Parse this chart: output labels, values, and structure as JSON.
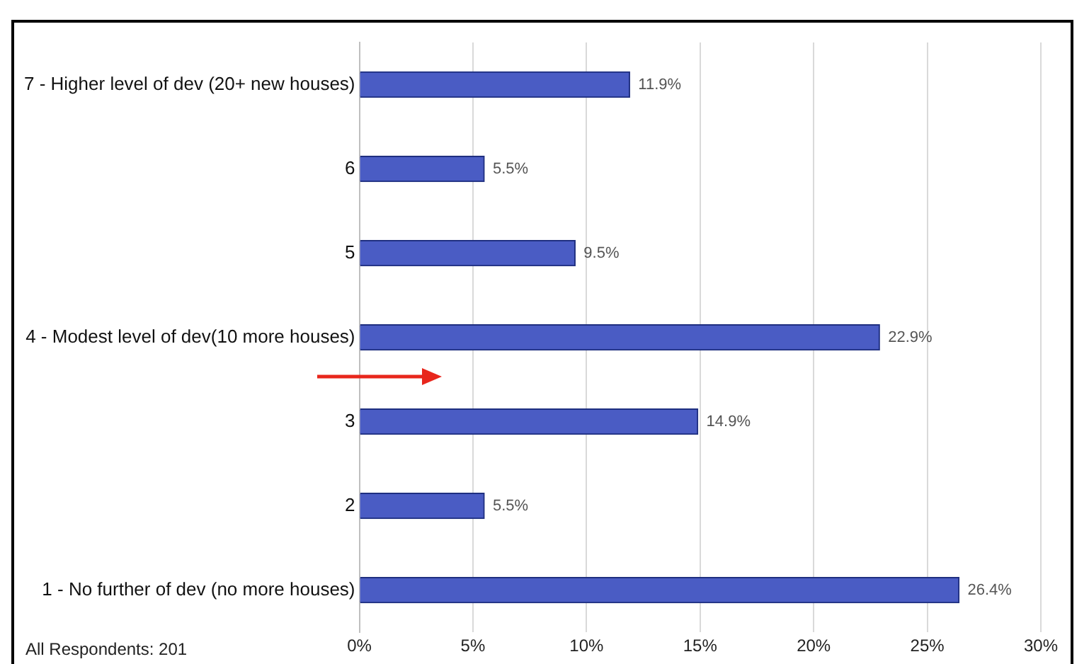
{
  "chart_data": {
    "type": "bar",
    "orientation": "horizontal",
    "categories": [
      "7 - Higher level of dev (20+ new houses)",
      "6",
      "5",
      "4 - Modest level of dev(10 more houses)",
      "3",
      "2",
      "1 - No further of dev (no more houses)"
    ],
    "values": [
      11.9,
      5.5,
      9.5,
      22.9,
      14.9,
      5.5,
      26.4
    ],
    "value_labels": [
      "11.9%",
      "5.5%",
      "9.5%",
      "22.9%",
      "14.9%",
      "5.5%",
      "26.4%"
    ],
    "color": "#4a5cc4",
    "xlim": [
      0,
      30
    ],
    "xticks": [
      {
        "value": 0,
        "label": "0%"
      },
      {
        "value": 5,
        "label": "5%"
      },
      {
        "value": 10,
        "label": "10%"
      },
      {
        "value": 15,
        "label": "15%"
      },
      {
        "value": 20,
        "label": "20%"
      },
      {
        "value": 25,
        "label": "25%"
      },
      {
        "value": 30,
        "label": "30%"
      }
    ],
    "grid": "x",
    "legend": false,
    "annotations": [
      "All Respondents: 201"
    ]
  }
}
